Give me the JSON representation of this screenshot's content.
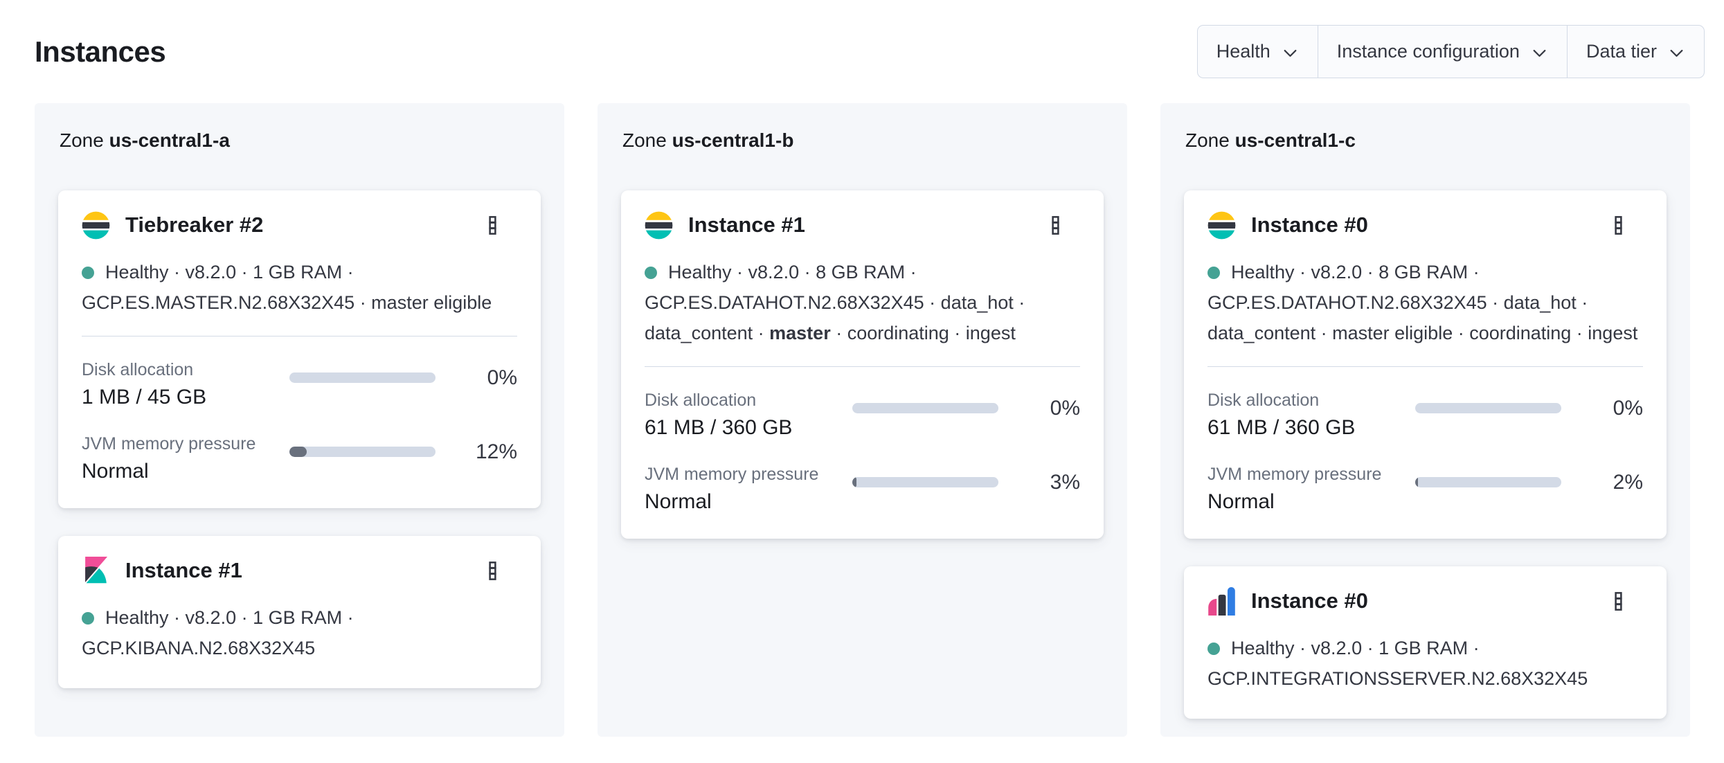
{
  "page": {
    "title": "Instances"
  },
  "filters": {
    "health": "Health",
    "instance_configuration": "Instance configuration",
    "data_tier": "Data tier"
  },
  "zones": [
    {
      "label_prefix": "Zone",
      "name": "us-central1-a",
      "cards": [
        {
          "logo": "elasticsearch-logo",
          "title": "Tiebreaker #2",
          "status_line1": "Healthy · v8.2.0 · 1 GB RAM ·",
          "status_line2": "GCP.ES.MASTER.N2.68X32X45 · master eligible",
          "metrics": [
            {
              "label": "Disk allocation",
              "value": "1 MB / 45 GB",
              "pct": "0%"
            },
            {
              "label": "JVM memory pressure",
              "value": "Normal",
              "pct": "12%"
            }
          ]
        },
        {
          "logo": "kibana-logo",
          "title": "Instance #1",
          "status_line1": "Healthy · v8.2.0 · 1 GB RAM ·",
          "status_line2": "GCP.KIBANA.N2.68X32X45"
        }
      ]
    },
    {
      "label_prefix": "Zone",
      "name": "us-central1-b",
      "cards": [
        {
          "logo": "elasticsearch-logo",
          "title": "Instance #1",
          "status_line1": "Healthy · v8.2.0 · 8 GB RAM ·",
          "status_line2": "GCP.ES.DATAHOT.N2.68X32X45 · data_hot ·",
          "status_line3_pre": "data_content · ",
          "status_line3_bold": "master",
          "status_line3_post": " · coordinating · ingest",
          "metrics": [
            {
              "label": "Disk allocation",
              "value": "61 MB / 360 GB",
              "pct": "0%"
            },
            {
              "label": "JVM memory pressure",
              "value": "Normal",
              "pct": "3%"
            }
          ]
        }
      ]
    },
    {
      "label_prefix": "Zone",
      "name": "us-central1-c",
      "cards": [
        {
          "logo": "elasticsearch-logo",
          "title": "Instance #0",
          "status_line1": "Healthy · v8.2.0 · 8 GB RAM ·",
          "status_line2": "GCP.ES.DATAHOT.N2.68X32X45 · data_hot ·",
          "status_line3_pre": "data_content · master eligible · coordinating · ingest",
          "metrics": [
            {
              "label": "Disk allocation",
              "value": "61 MB / 360 GB",
              "pct": "0%"
            },
            {
              "label": "JVM memory pressure",
              "value": "Normal",
              "pct": "2%"
            }
          ]
        },
        {
          "logo": "integrations-server-logo",
          "title": "Instance #0",
          "status_line1": "Healthy · v8.2.0 · 1 GB RAM ·",
          "status_line2": "GCP.INTEGRATIONSSERVER.N2.68X32X45"
        }
      ]
    }
  ],
  "colors": {
    "healthy_dot": "#45a294",
    "es_logo_yellow": "#FEC514",
    "es_logo_dark": "#343741",
    "es_logo_teal": "#00BFB3",
    "kibana_pink": "#F04E98",
    "integrations_pink": "#E8488B",
    "integrations_blue": "#2F7DE3",
    "progress_track": "#d3dae6",
    "progress_fill": "#69707d",
    "zone_panel_bg": "#f5f7fa"
  }
}
